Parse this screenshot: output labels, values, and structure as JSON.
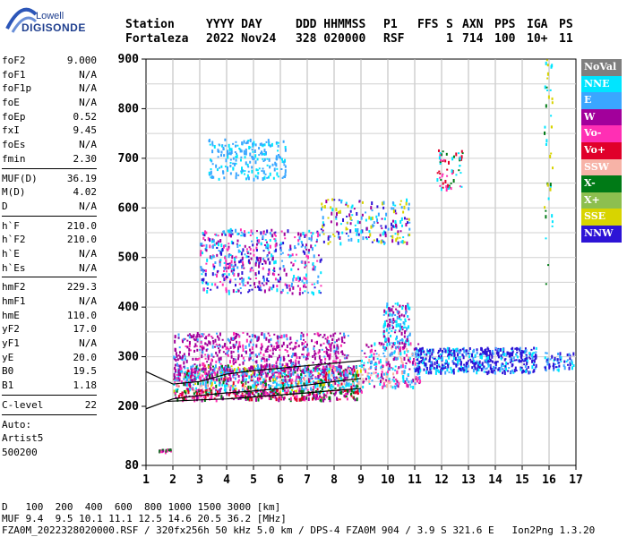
{
  "logo": {
    "brand": "Lowell",
    "product": "DIGISONDE"
  },
  "header": {
    "labels": [
      "Station",
      "YYYY DAY",
      "DDD HHMMSS",
      "P1",
      "FFS",
      "S",
      "AXN",
      "PPS",
      "IGA",
      "PS"
    ],
    "values": [
      "Fortaleza",
      "2022 Nov24",
      "328 020000",
      "RSF",
      "",
      "1",
      "714",
      "100",
      "10+",
      "11"
    ]
  },
  "params": {
    "group1": [
      {
        "label": "foF2",
        "value": "9.000"
      },
      {
        "label": "foF1",
        "value": "N/A"
      },
      {
        "label": "foF1p",
        "value": "N/A"
      },
      {
        "label": "foE",
        "value": "N/A"
      },
      {
        "label": "foEp",
        "value": "0.52"
      },
      {
        "label": "fxI",
        "value": "9.45"
      },
      {
        "label": "foEs",
        "value": "N/A"
      },
      {
        "label": "fmin",
        "value": "2.30"
      }
    ],
    "group2": [
      {
        "label": "MUF(D)",
        "value": "36.19"
      },
      {
        "label": "M(D)",
        "value": "4.02"
      },
      {
        "label": "D",
        "value": "N/A"
      }
    ],
    "group3": [
      {
        "label": "h`F",
        "value": "210.0"
      },
      {
        "label": "h`F2",
        "value": "210.0"
      },
      {
        "label": "h`E",
        "value": "N/A"
      },
      {
        "label": "h`Es",
        "value": "N/A"
      }
    ],
    "group4": [
      {
        "label": "hmF2",
        "value": "229.3"
      },
      {
        "label": "hmF1",
        "value": "N/A"
      },
      {
        "label": "hmE",
        "value": "110.0"
      },
      {
        "label": "yF2",
        "value": "17.0"
      },
      {
        "label": "yF1",
        "value": "N/A"
      },
      {
        "label": "yE",
        "value": "20.0"
      },
      {
        "label": "B0",
        "value": "19.5"
      },
      {
        "label": "B1",
        "value": "1.18"
      }
    ],
    "group5": [
      {
        "label": "C-level",
        "value": "22"
      }
    ],
    "footer_lines": [
      "Auto:",
      "Artist5",
      "500200"
    ]
  },
  "legend": [
    {
      "label": "NoVal",
      "color": "#7f7f7f"
    },
    {
      "label": "NNE",
      "color": "#00e5ff"
    },
    {
      "label": "E",
      "color": "#3aa6ff"
    },
    {
      "label": "W",
      "color": "#a2009b"
    },
    {
      "label": "Vo-",
      "color": "#ff2fb4"
    },
    {
      "label": "Vo+",
      "color": "#e0002a"
    },
    {
      "label": "SSW",
      "color": "#f7b3a7"
    },
    {
      "label": "X-",
      "color": "#007a16"
    },
    {
      "label": "X+",
      "color": "#8dbf4f"
    },
    {
      "label": "SSE",
      "color": "#d8d400"
    },
    {
      "label": "NNW",
      "color": "#2d14d6"
    }
  ],
  "chart_data": {
    "type": "scatter",
    "title": "",
    "xlabel": "",
    "ylabel": "",
    "xlim": [
      1,
      17
    ],
    "ylim": [
      80,
      900
    ],
    "x_ticks": [
      1,
      2,
      3,
      4,
      5,
      6,
      7,
      8,
      9,
      10,
      11,
      12,
      13,
      14,
      15,
      16,
      17
    ],
    "y_ticks": [
      80,
      200,
      300,
      400,
      500,
      600,
      700,
      800,
      900
    ],
    "grid": true,
    "legend_position": "right",
    "trace": [
      [
        1.0,
        270
      ],
      [
        2.0,
        245
      ],
      [
        3.0,
        250
      ],
      [
        4.0,
        265
      ],
      [
        5.0,
        272
      ],
      [
        6.0,
        277
      ],
      [
        7.0,
        282
      ],
      [
        8.0,
        287
      ],
      [
        9.0,
        292
      ]
    ],
    "profile": [
      [
        1.0,
        195
      ],
      [
        2.0,
        215
      ],
      [
        3.0,
        222
      ],
      [
        4.0,
        227
      ],
      [
        5.0,
        231
      ],
      [
        6.0,
        236
      ],
      [
        7.0,
        243
      ],
      [
        8.0,
        250
      ],
      [
        9.0,
        256
      ]
    ],
    "lower_profile": [
      [
        1.8,
        210
      ],
      [
        3.0,
        213
      ],
      [
        4.0,
        215
      ],
      [
        5.0,
        219
      ],
      [
        6.0,
        223
      ],
      [
        7.0,
        227
      ],
      [
        8.0,
        232
      ],
      [
        9.0,
        236
      ]
    ]
  },
  "bottom": {
    "d_label": "D",
    "d_values": "100  200  400  600  800 1000 1500 3000 [km]",
    "muf_label": "MUF",
    "muf_values": "9.4  9.5 10.1 11.1 12.5 14.6 20.5 36.2 [MHz]",
    "footer": "FZA0M_2022328020000.RSF / 320fx256h 50 kHz 5.0 km / DPS-4 FZA0M 904 / 3.9 S 321.6 E   Ion2Png 1.3.20"
  }
}
